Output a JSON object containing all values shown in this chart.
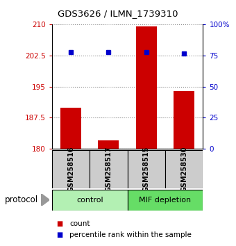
{
  "title": "GDS3626 / ILMN_1739310",
  "samples": [
    "GSM258516",
    "GSM258517",
    "GSM258515",
    "GSM258530"
  ],
  "bar_values": [
    190.0,
    182.0,
    209.5,
    194.0
  ],
  "bar_color": "#cc0000",
  "bar_bottom": 180,
  "percentile_values": [
    78,
    78,
    78,
    77
  ],
  "percentile_color": "#0000cc",
  "left_ylim": [
    180,
    210
  ],
  "left_yticks": [
    180,
    187.5,
    195,
    202.5,
    210
  ],
  "left_ytick_labels": [
    "180",
    "187.5",
    "195",
    "202.5",
    "210"
  ],
  "right_ylim": [
    0,
    100
  ],
  "right_yticks": [
    0,
    25,
    50,
    75,
    100
  ],
  "right_ytick_labels": [
    "0",
    "25",
    "50",
    "75",
    "100%"
  ],
  "groups": [
    {
      "label": "control",
      "color": "#b3f0b3"
    },
    {
      "label": "MIF depletion",
      "color": "#66dd66"
    }
  ],
  "protocol_label": "protocol",
  "legend_count_color": "#cc0000",
  "legend_pct_color": "#0000cc",
  "background_color": "#ffffff",
  "plot_bg_color": "#ffffff",
  "tick_color_left": "#cc0000",
  "tick_color_right": "#0000cc",
  "bar_width": 0.55,
  "sample_box_color": "#cccccc",
  "dotted_line_color": "#888888"
}
